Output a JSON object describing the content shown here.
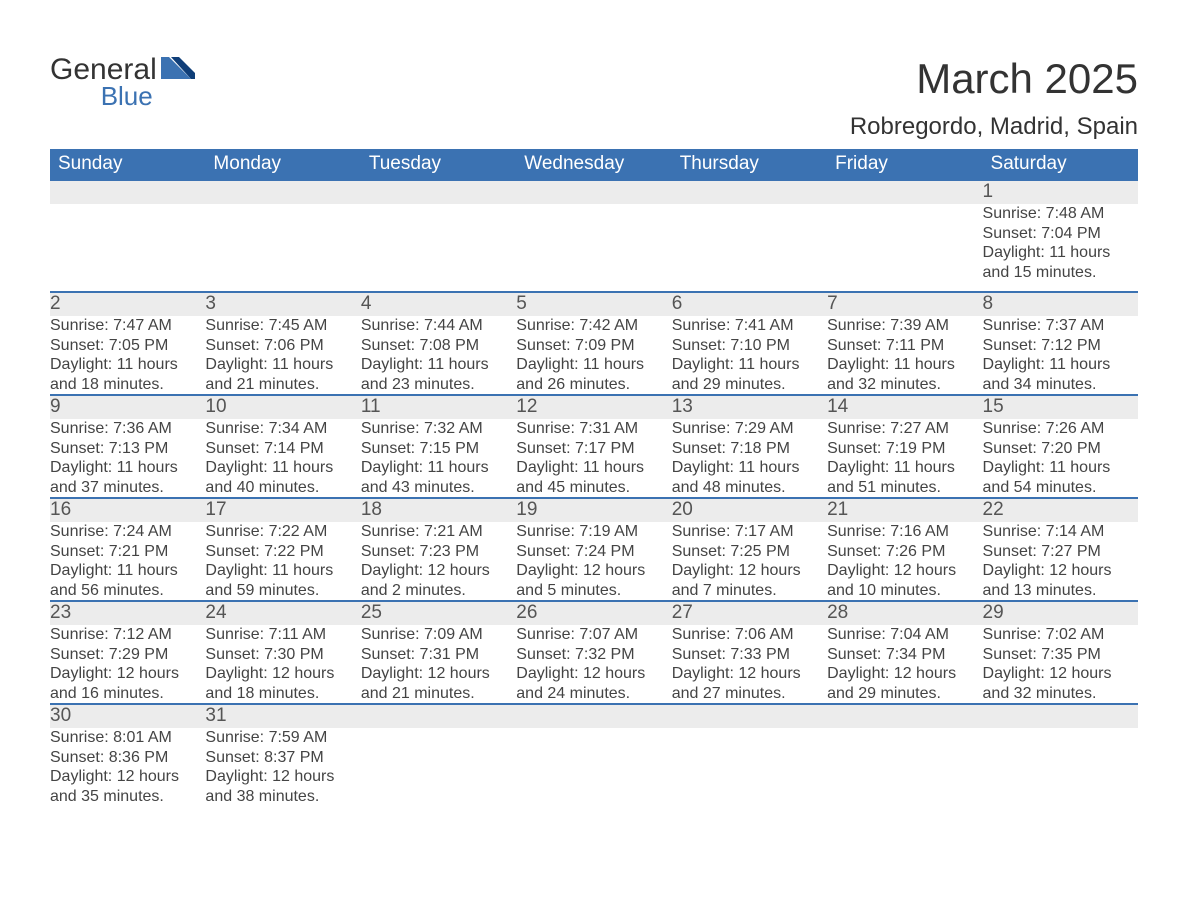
{
  "logo": {
    "general": "General",
    "blue": "Blue"
  },
  "title": "March 2025",
  "subtitle": "Robregordo, Madrid, Spain",
  "colors": {
    "header_bg": "#3b72b2",
    "header_text": "#ffffff",
    "daynum_bg": "#ececec",
    "row_border": "#3b72b2",
    "body_text": "#444444",
    "background": "#ffffff"
  },
  "columns": [
    "Sunday",
    "Monday",
    "Tuesday",
    "Wednesday",
    "Thursday",
    "Friday",
    "Saturday"
  ],
  "weeks": [
    {
      "nums": [
        "",
        "",
        "",
        "",
        "",
        "",
        "1"
      ],
      "cells": [
        "",
        "",
        "",
        "",
        "",
        "",
        "Sunrise: 7:48 AM\nSunset: 7:04 PM\nDaylight: 11 hours and 15 minutes."
      ]
    },
    {
      "nums": [
        "2",
        "3",
        "4",
        "5",
        "6",
        "7",
        "8"
      ],
      "cells": [
        "Sunrise: 7:47 AM\nSunset: 7:05 PM\nDaylight: 11 hours and 18 minutes.",
        "Sunrise: 7:45 AM\nSunset: 7:06 PM\nDaylight: 11 hours and 21 minutes.",
        "Sunrise: 7:44 AM\nSunset: 7:08 PM\nDaylight: 11 hours and 23 minutes.",
        "Sunrise: 7:42 AM\nSunset: 7:09 PM\nDaylight: 11 hours and 26 minutes.",
        "Sunrise: 7:41 AM\nSunset: 7:10 PM\nDaylight: 11 hours and 29 minutes.",
        "Sunrise: 7:39 AM\nSunset: 7:11 PM\nDaylight: 11 hours and 32 minutes.",
        "Sunrise: 7:37 AM\nSunset: 7:12 PM\nDaylight: 11 hours and 34 minutes."
      ]
    },
    {
      "nums": [
        "9",
        "10",
        "11",
        "12",
        "13",
        "14",
        "15"
      ],
      "cells": [
        "Sunrise: 7:36 AM\nSunset: 7:13 PM\nDaylight: 11 hours and 37 minutes.",
        "Sunrise: 7:34 AM\nSunset: 7:14 PM\nDaylight: 11 hours and 40 minutes.",
        "Sunrise: 7:32 AM\nSunset: 7:15 PM\nDaylight: 11 hours and 43 minutes.",
        "Sunrise: 7:31 AM\nSunset: 7:17 PM\nDaylight: 11 hours and 45 minutes.",
        "Sunrise: 7:29 AM\nSunset: 7:18 PM\nDaylight: 11 hours and 48 minutes.",
        "Sunrise: 7:27 AM\nSunset: 7:19 PM\nDaylight: 11 hours and 51 minutes.",
        "Sunrise: 7:26 AM\nSunset: 7:20 PM\nDaylight: 11 hours and 54 minutes."
      ]
    },
    {
      "nums": [
        "16",
        "17",
        "18",
        "19",
        "20",
        "21",
        "22"
      ],
      "cells": [
        "Sunrise: 7:24 AM\nSunset: 7:21 PM\nDaylight: 11 hours and 56 minutes.",
        "Sunrise: 7:22 AM\nSunset: 7:22 PM\nDaylight: 11 hours and 59 minutes.",
        "Sunrise: 7:21 AM\nSunset: 7:23 PM\nDaylight: 12 hours and 2 minutes.",
        "Sunrise: 7:19 AM\nSunset: 7:24 PM\nDaylight: 12 hours and 5 minutes.",
        "Sunrise: 7:17 AM\nSunset: 7:25 PM\nDaylight: 12 hours and 7 minutes.",
        "Sunrise: 7:16 AM\nSunset: 7:26 PM\nDaylight: 12 hours and 10 minutes.",
        "Sunrise: 7:14 AM\nSunset: 7:27 PM\nDaylight: 12 hours and 13 minutes."
      ]
    },
    {
      "nums": [
        "23",
        "24",
        "25",
        "26",
        "27",
        "28",
        "29"
      ],
      "cells": [
        "Sunrise: 7:12 AM\nSunset: 7:29 PM\nDaylight: 12 hours and 16 minutes.",
        "Sunrise: 7:11 AM\nSunset: 7:30 PM\nDaylight: 12 hours and 18 minutes.",
        "Sunrise: 7:09 AM\nSunset: 7:31 PM\nDaylight: 12 hours and 21 minutes.",
        "Sunrise: 7:07 AM\nSunset: 7:32 PM\nDaylight: 12 hours and 24 minutes.",
        "Sunrise: 7:06 AM\nSunset: 7:33 PM\nDaylight: 12 hours and 27 minutes.",
        "Sunrise: 7:04 AM\nSunset: 7:34 PM\nDaylight: 12 hours and 29 minutes.",
        "Sunrise: 7:02 AM\nSunset: 7:35 PM\nDaylight: 12 hours and 32 minutes."
      ]
    },
    {
      "nums": [
        "30",
        "31",
        "",
        "",
        "",
        "",
        ""
      ],
      "cells": [
        "Sunrise: 8:01 AM\nSunset: 8:36 PM\nDaylight: 12 hours and 35 minutes.",
        "Sunrise: 7:59 AM\nSunset: 8:37 PM\nDaylight: 12 hours and 38 minutes.",
        "",
        "",
        "",
        "",
        ""
      ]
    }
  ]
}
